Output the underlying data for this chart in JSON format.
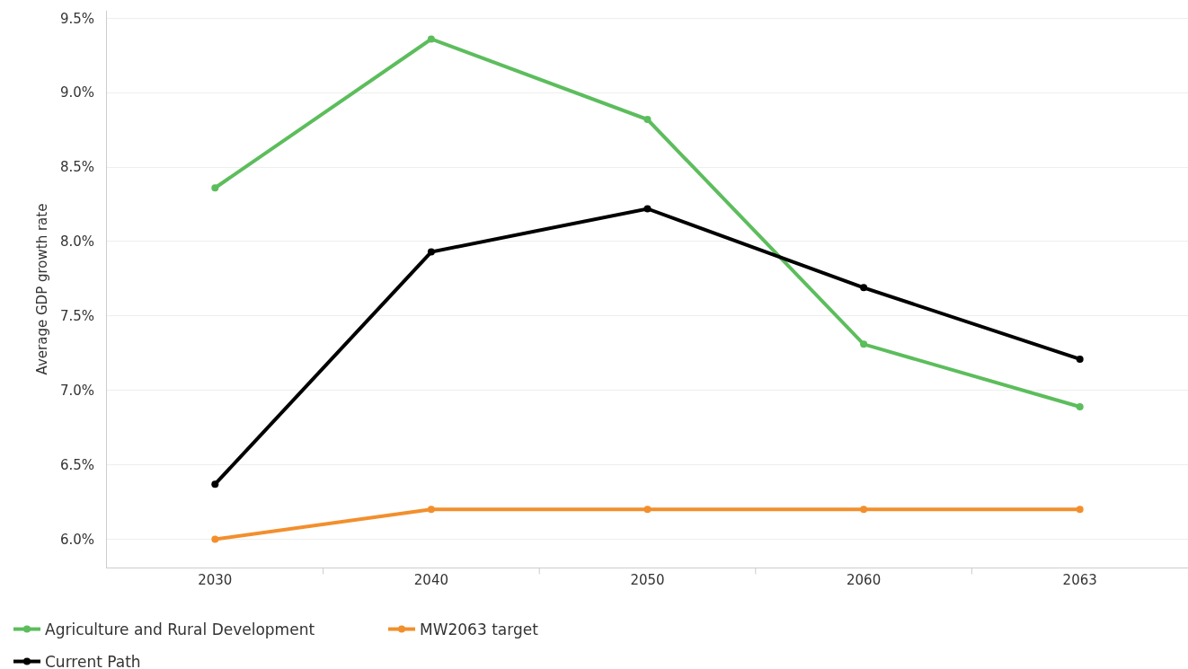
{
  "chart_data": {
    "type": "line",
    "ylabel": "Average GDP growth rate",
    "categories": [
      "2030",
      "2040",
      "2050",
      "2060",
      "2063"
    ],
    "series": [
      {
        "name": "Agriculture and Rural Development",
        "color": "#5cbd5c",
        "values": [
          8.36,
          9.36,
          8.82,
          7.31,
          6.89
        ]
      },
      {
        "name": "MW2063 target",
        "color": "#f28f2d",
        "values": [
          6.0,
          6.2,
          6.2,
          6.2,
          6.2
        ]
      },
      {
        "name": "Current Path",
        "color": "#000000",
        "values": [
          6.37,
          7.93,
          8.22,
          7.69,
          7.21
        ]
      }
    ],
    "ylim": [
      5.81,
      9.55
    ],
    "yticks": [
      {
        "value": 6.0,
        "label": "6.0%"
      },
      {
        "value": 6.5,
        "label": "6.5%"
      },
      {
        "value": 7.0,
        "label": "7.0%"
      },
      {
        "value": 7.5,
        "label": "7.5%"
      },
      {
        "value": 8.0,
        "label": "8.0%"
      },
      {
        "value": 8.5,
        "label": "8.5%"
      },
      {
        "value": 9.0,
        "label": "9.0%"
      },
      {
        "value": 9.5,
        "label": "9.5%"
      }
    ],
    "grid": "y",
    "legend": "bottom left",
    "marker": "circle",
    "line_style": "solid"
  }
}
